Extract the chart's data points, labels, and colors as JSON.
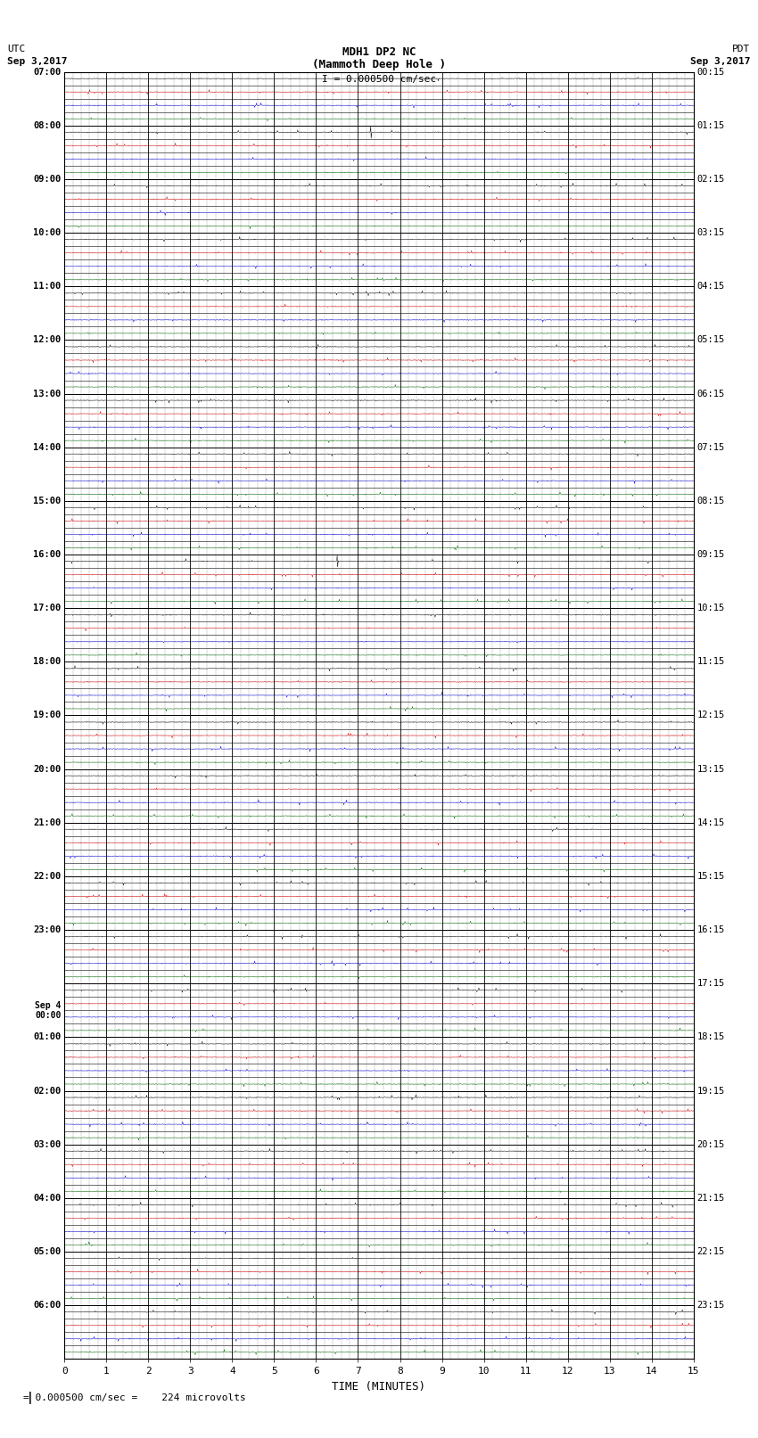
{
  "title_line1": "MDH1 DP2 NC",
  "title_line2": "(Mammoth Deep Hole )",
  "title_line3": "I = 0.000500 cm/sec",
  "left_header_line1": "UTC",
  "left_header_line2": "Sep 3,2017",
  "right_header_line1": "PDT",
  "right_header_line2": "Sep 3,2017",
  "utc_labels": [
    "07:00",
    "08:00",
    "09:00",
    "10:00",
    "11:00",
    "12:00",
    "13:00",
    "14:00",
    "15:00",
    "16:00",
    "17:00",
    "18:00",
    "19:00",
    "20:00",
    "21:00",
    "22:00",
    "23:00",
    "Sep 4\n00:00",
    "01:00",
    "02:00",
    "03:00",
    "04:00",
    "05:00",
    "06:00"
  ],
  "pdt_labels": [
    "00:15",
    "01:15",
    "02:15",
    "03:15",
    "04:15",
    "05:15",
    "06:15",
    "07:15",
    "08:15",
    "09:15",
    "10:15",
    "11:15",
    "12:15",
    "13:15",
    "14:15",
    "15:15",
    "16:15",
    "17:15",
    "18:15",
    "19:15",
    "20:15",
    "21:15",
    "22:15",
    "23:15"
  ],
  "n_hours": 24,
  "subrows_per_hour": 4,
  "n_minutes": 15,
  "xlabel": "TIME (MINUTES)",
  "xticks": [
    0,
    1,
    2,
    3,
    4,
    5,
    6,
    7,
    8,
    9,
    10,
    11,
    12,
    13,
    14,
    15
  ],
  "footer_text": "= 0.000500 cm/sec =    224 microvolts",
  "background_color": "#ffffff",
  "trace_colors": [
    "#000000",
    "#cc0000",
    "#0000cc",
    "#006600"
  ],
  "spike_hour_08_subrow": 0,
  "spike_hour_08_minute": 7.3,
  "spike_hour_16_subrow": 0,
  "spike_hour_16_minute": 6.5,
  "green_bar_color": "#00bb00"
}
